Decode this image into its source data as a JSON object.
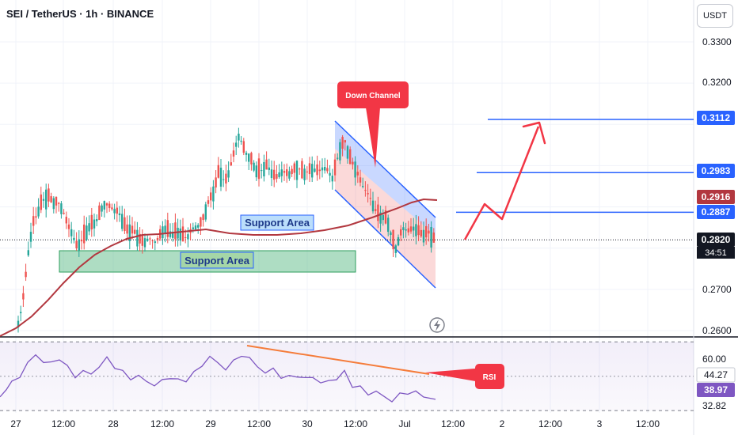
{
  "header": {
    "title": "SEI / TetherUS · 1h · BINANCE",
    "currency": "USDT"
  },
  "chart_data": {
    "type": "candlestick",
    "price_axis": {
      "ticks": [
        "0.3300",
        "0.3200",
        "0.2700",
        "0.2600"
      ],
      "markers": [
        {
          "label": "0.3112",
          "color": "#2962ff"
        },
        {
          "label": "0.2983",
          "color": "#2962ff"
        },
        {
          "label": "0.2916",
          "color": "#b2373f"
        },
        {
          "label": "0.2887",
          "color": "#2962ff"
        },
        {
          "label": "0.2820",
          "color": "#131722"
        }
      ],
      "countdown": "34:51",
      "ylim": [
        0.2585,
        0.3405
      ]
    },
    "horizontal_levels": [
      0.3112,
      0.2983,
      0.2887
    ],
    "current_price": 0.282,
    "time_axis": [
      "27",
      "12:00",
      "28",
      "12:00",
      "29",
      "12:00",
      "30",
      "12:00",
      "Jul",
      "12:00",
      "2",
      "12:00",
      "3",
      "12:00"
    ],
    "annotations": {
      "support_upper": "Support Area",
      "support_lower": "Support Area",
      "down_channel": "Down Channel",
      "rsi_callout": "RSI"
    },
    "rsi": {
      "ticks": [
        "60.00",
        "44.27",
        "38.97",
        "32.82"
      ],
      "value": 38.97,
      "ylim": [
        30,
        82
      ]
    },
    "colors": {
      "up": "#26a69a",
      "down": "#ef5350",
      "ma": "#b2373f",
      "level": "#2962ff",
      "rsi": "#7e57c2",
      "rsi_trend": "#f57c3a",
      "projection": "#f23645"
    }
  }
}
